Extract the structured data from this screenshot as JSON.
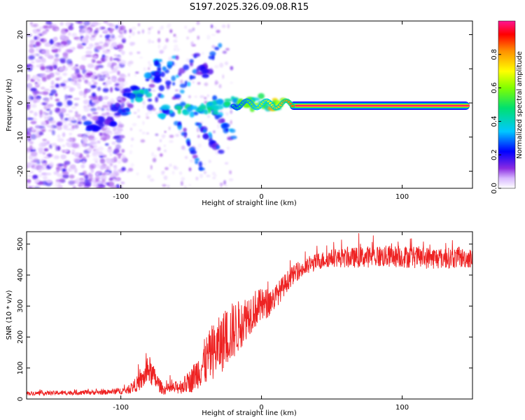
{
  "title": "S197.2025.326.09.08.R15",
  "chart_data": [
    {
      "type": "heatmap",
      "title": "S197.2025.326.09.08.R15",
      "xlabel": "Height of straight line (km)",
      "ylabel": "Frequency (Hz)",
      "xlim": [
        -167,
        150
      ],
      "ylim": [
        -25,
        24
      ],
      "xticks": [
        -100,
        0,
        100
      ],
      "yticks": [
        -20,
        -10,
        0,
        10,
        20
      ],
      "xtick_labels": [
        "-100",
        "0",
        "100"
      ],
      "ytick_labels": [
        "-20",
        "-10",
        "0",
        "10",
        "20"
      ],
      "colorbar": {
        "label": "Normalized spectral amplitude",
        "range": [
          0,
          1
        ],
        "ticks": [
          0.0,
          0.2,
          0.4,
          0.6,
          0.8
        ],
        "tick_labels": [
          "0.0",
          "0.2",
          "0.4",
          "0.6",
          "0.8"
        ],
        "colormap": "rainbow"
      },
      "main_ridge": {
        "description": "strong tone near 0 Hz",
        "x_start": 20,
        "x_end": 148,
        "frequency_hz": -0.8,
        "amplitude": 1.0
      },
      "clusters": [
        {
          "x": -120,
          "y": -6.5,
          "amp": 0.25
        },
        {
          "x": -110,
          "y": -5.5,
          "amp": 0.2
        },
        {
          "x": -100,
          "y": -2,
          "amp": 0.25
        },
        {
          "x": -93,
          "y": 3,
          "amp": 0.3
        },
        {
          "x": -85,
          "y": 2,
          "amp": 0.4
        },
        {
          "x": -78,
          "y": 8,
          "amp": 0.3
        },
        {
          "x": -70,
          "y": 11,
          "amp": 0.35
        },
        {
          "x": -68,
          "y": -2.5,
          "amp": 0.35
        },
        {
          "x": -55,
          "y": -1.5,
          "amp": 0.45
        },
        {
          "x": -45,
          "y": -2,
          "amp": 0.4
        },
        {
          "x": -40,
          "y": 9,
          "amp": 0.2
        },
        {
          "x": -35,
          "y": -1.5,
          "amp": 0.45
        },
        {
          "x": -30,
          "y": 0,
          "amp": 0.4
        },
        {
          "x": -20,
          "y": 0,
          "amp": 0.45
        },
        {
          "x": -10,
          "y": -0.5,
          "amp": 0.55
        },
        {
          "x": -5,
          "y": 0.5,
          "amp": 0.6
        },
        {
          "x": 5,
          "y": -0.8,
          "amp": 0.65
        },
        {
          "x": 12,
          "y": -0.5,
          "amp": 0.75
        }
      ]
    },
    {
      "type": "line",
      "xlabel": "Height of straight line (km)",
      "ylabel": "SNR (10 * v/v)",
      "xlim": [
        -167,
        150
      ],
      "ylim": [
        0,
        540
      ],
      "xticks": [
        -100,
        0,
        100
      ],
      "yticks": [
        0,
        100,
        200,
        300,
        400,
        500
      ],
      "xtick_labels": [
        "-100",
        "0",
        "100"
      ],
      "ytick_labels": [
        "0",
        "100",
        "200",
        "300",
        "400",
        "500"
      ],
      "series": [
        {
          "name": "SNR",
          "color": "#ee2222",
          "envelope_x": [
            -167,
            -110,
            -95,
            -85,
            -80,
            -75,
            -70,
            -62,
            -55,
            -50,
            -45,
            -40,
            -35,
            -30,
            -25,
            -20,
            -15,
            -10,
            -5,
            0,
            5,
            10,
            15,
            20,
            25,
            30,
            40,
            50,
            60,
            80,
            100,
            120,
            150
          ],
          "envelope_mean": [
            18,
            22,
            28,
            60,
            95,
            60,
            30,
            35,
            45,
            60,
            90,
            120,
            150,
            170,
            200,
            220,
            240,
            270,
            290,
            300,
            310,
            330,
            360,
            390,
            410,
            420,
            445,
            455,
            455,
            460,
            460,
            455,
            455
          ],
          "envelope_spread": [
            8,
            10,
            15,
            40,
            60,
            40,
            20,
            25,
            35,
            50,
            70,
            100,
            110,
            120,
            120,
            120,
            100,
            90,
            80,
            70,
            60,
            50,
            45,
            40,
            35,
            35,
            35,
            35,
            40,
            45,
            45,
            45,
            40
          ]
        }
      ]
    }
  ]
}
